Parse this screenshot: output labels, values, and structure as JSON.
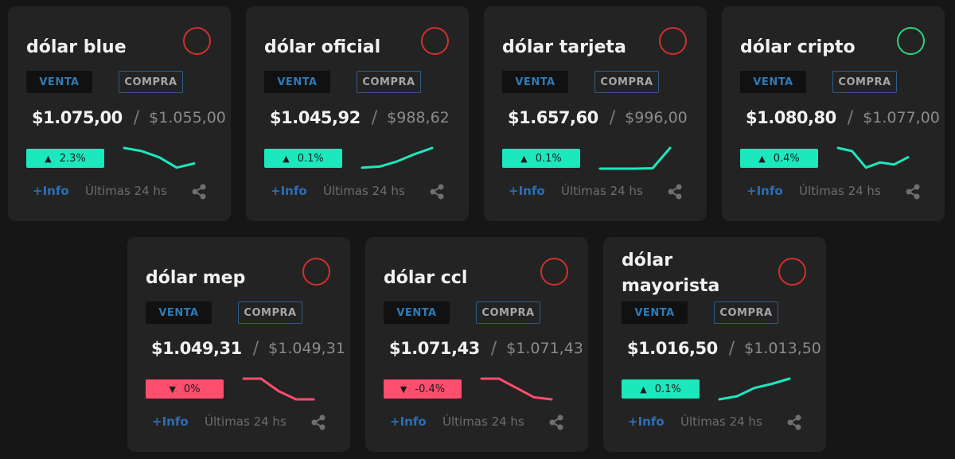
{
  "cards": [
    {
      "title": "dólar blue",
      "venta_label": "VENTA",
      "compra_label": "COMPRA",
      "sell": "$1.075,00",
      "separator": "/",
      "buy": "$1.055,00",
      "change": "2.3%",
      "direction": "up",
      "status_color": "#d0312d",
      "trend": [
        1,
        0.85,
        0.55,
        0.05,
        0.25
      ],
      "info_label": "+Info",
      "period_label": "Últimas 24 hs",
      "share_icon": "share-icon"
    },
    {
      "title": "dólar oficial",
      "venta_label": "VENTA",
      "compra_label": "COMPRA",
      "sell": "$1.045,92",
      "separator": "/",
      "buy": "$988,62",
      "change": "0.1%",
      "direction": "up",
      "status_color": "#d0312d",
      "trend": [
        0.05,
        0.1,
        0.35,
        0.7,
        1
      ],
      "info_label": "+Info",
      "period_label": "Últimas 24 hs",
      "share_icon": "share-icon"
    },
    {
      "title": "dólar tarjeta",
      "venta_label": "VENTA",
      "compra_label": "COMPRA",
      "sell": "$1.657,60",
      "separator": "/",
      "buy": "$996,00",
      "change": "0.1%",
      "direction": "up",
      "status_color": "#d0312d",
      "trend": [
        0,
        0,
        0,
        0.02,
        1
      ],
      "info_label": "+Info",
      "period_label": "Últimas 24 hs",
      "share_icon": "share-icon"
    },
    {
      "title": "dólar cripto",
      "venta_label": "VENTA",
      "compra_label": "COMPRA",
      "sell": "$1.080,80",
      "separator": "/",
      "buy": "$1.077,00",
      "change": "0.4%",
      "direction": "up",
      "status_color": "#2ed47a",
      "trend": [
        1,
        0.85,
        0.05,
        0.3,
        0.2,
        0.55
      ],
      "info_label": "+Info",
      "period_label": "Últimas 24 hs",
      "share_icon": "share-icon"
    },
    {
      "title": "dólar mep",
      "venta_label": "VENTA",
      "compra_label": "COMPRA",
      "sell": "$1.049,31",
      "separator": "/",
      "buy": "$1.049,31",
      "change": "0%",
      "direction": "down",
      "status_color": "#d0312d",
      "trend": [
        1,
        1,
        0.4,
        0,
        0
      ],
      "info_label": "+Info",
      "period_label": "Últimas 24 hs",
      "share_icon": "share-icon"
    },
    {
      "title": "dólar ccl",
      "venta_label": "VENTA",
      "compra_label": "COMPRA",
      "sell": "$1.071,43",
      "separator": "/",
      "buy": "$1.071,43",
      "change": "-0.4%",
      "direction": "down",
      "status_color": "#d0312d",
      "trend": [
        1,
        1,
        0.55,
        0.1,
        0
      ],
      "info_label": "+Info",
      "period_label": "Últimas 24 hs",
      "share_icon": "share-icon"
    },
    {
      "title": "dólar mayorista",
      "venta_label": "VENTA",
      "compra_label": "COMPRA",
      "sell": "$1.016,50",
      "separator": "/",
      "buy": "$1.013,50",
      "change": "0.1%",
      "direction": "up",
      "status_color": "#d0312d",
      "trend": [
        0,
        0.15,
        0.55,
        0.75,
        1
      ],
      "info_label": "+Info",
      "period_label": "Últimas 24 hs",
      "share_icon": "share-icon"
    }
  ],
  "colors": {
    "up": "#1ce8bd",
    "down": "#ff4d6d",
    "accent": "#2c6eb3"
  }
}
